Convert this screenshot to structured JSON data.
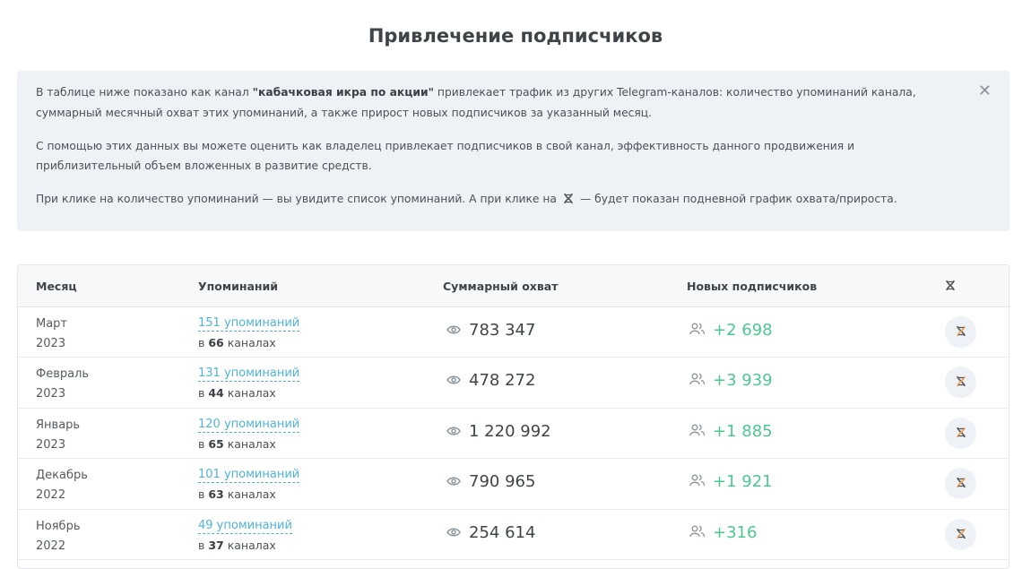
{
  "title": "Привлечение подписчиков",
  "info": {
    "p1_before": "В таблице ниже показано как канал ",
    "p1_channel": "\"кабачковая икра по акции\"",
    "p1_after": " привлекает трафик из других Telegram-каналов: количество упоминаний канала, суммарный месячный охват этих упоминаний, а также прирост новых подписчиков за указанный месяц.",
    "p2": "С помощью этих данных вы можете оценить как владелец привлекает подписчиков в свой канал, эффективность данного продвижения и приблизительный объем вложенных в развитие средств.",
    "p3_before": "При клике на количество упоминаний — вы увидите список упоминаний. А при клике на",
    "p3_after": "— будет показан подневной график охвата/прироста.",
    "close_icon": "close-icon"
  },
  "table": {
    "headers": {
      "month": "Месяц",
      "mentions": "Упоминаний",
      "reach": "Суммарный охват",
      "subscribers": "Новых подписчиков",
      "action_icon": "dna-icon"
    },
    "channels_prefix": "в ",
    "channels_suffix": " каналах",
    "rows": [
      {
        "month": "Март",
        "year": "2023",
        "mentions": "151 упоминаний",
        "channels": "66",
        "reach": "783 347",
        "subscribers": "+2 698"
      },
      {
        "month": "Февраль",
        "year": "2023",
        "mentions": "131 упоминаний",
        "channels": "44",
        "reach": "478 272",
        "subscribers": "+3 939"
      },
      {
        "month": "Январь",
        "year": "2023",
        "mentions": "120 упоминаний",
        "channels": "65",
        "reach": "1 220 992",
        "subscribers": "+1 885"
      },
      {
        "month": "Декабрь",
        "year": "2022",
        "mentions": "101 упоминаний",
        "channels": "63",
        "reach": "790 965",
        "subscribers": "+1 921"
      },
      {
        "month": "Ноябрь",
        "year": "2022",
        "mentions": "49 упоминаний",
        "channels": "37",
        "reach": "254 614",
        "subscribers": "+316"
      }
    ]
  },
  "colors": {
    "link": "#4fb3d9",
    "positive": "#4cc98f",
    "info_bg": "#eef1f6",
    "dna_accent": "#f0a050"
  }
}
